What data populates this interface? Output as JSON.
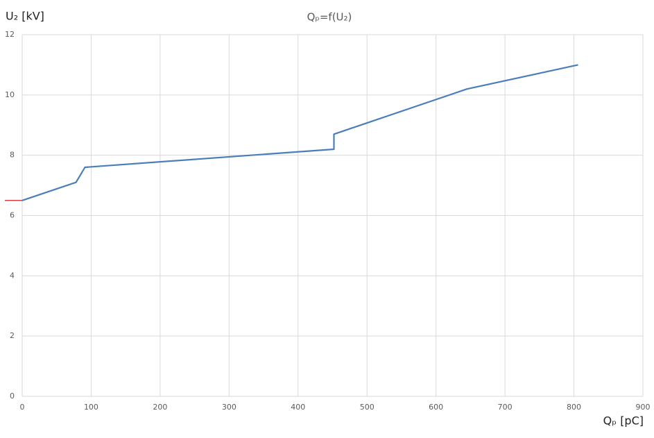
{
  "chart_data": {
    "type": "line",
    "title": "Qₚ=f(U₂)",
    "y_label": "U₂ [kV]",
    "x_label": "Qₚ [pC]",
    "x": [
      0,
      78,
      91,
      452,
      452,
      645,
      806
    ],
    "series": [
      {
        "color": "#4a7ebb",
        "values": [
          6.5,
          7.1,
          7.6,
          8.2,
          8.7,
          10.2,
          11.0
        ]
      }
    ],
    "xlim": [
      0,
      900
    ],
    "xticks": [
      0,
      100,
      200,
      300,
      400,
      500,
      600,
      700,
      800,
      900
    ],
    "ylim": [
      0,
      12
    ],
    "yticks": [
      0,
      2,
      4,
      6,
      8,
      10,
      12
    ],
    "grid": true
  }
}
